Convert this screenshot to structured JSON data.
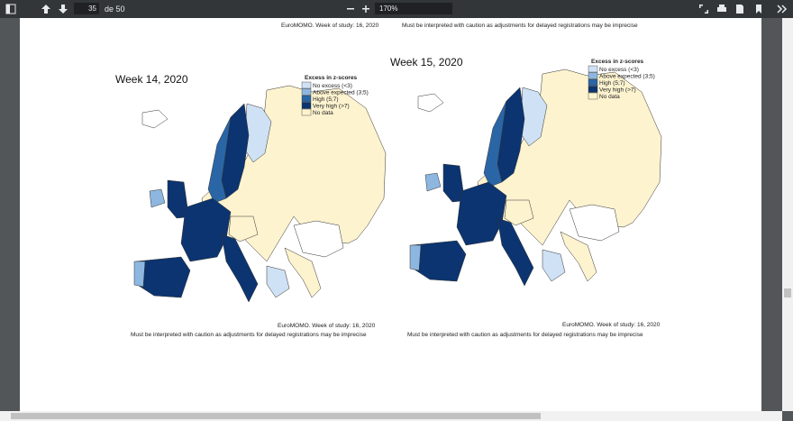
{
  "toolbar": {
    "page_number": "35",
    "page_total": "de 50",
    "zoom": "170%"
  },
  "page": {
    "top_footer": {
      "source": "EuroMOMO. Week of study: 16, 2020",
      "caution": "Must be interpreted with caution as adjustments for delayed registrations may be imprecise"
    },
    "panels": [
      {
        "title": "Week 14, 2020",
        "legend": {
          "title": "Excess in z-scores",
          "items": [
            {
              "label": "No excess (<3)",
              "color": "#cfe1f4"
            },
            {
              "label": "Above expected (3;5)",
              "color": "#8db7e0"
            },
            {
              "label": "High (5;7)",
              "color": "#2a66a6"
            },
            {
              "label": "Very high (>7)",
              "color": "#0b3470"
            },
            {
              "label": "No data",
              "color": "#fdf3cf"
            }
          ]
        },
        "source": "EuroMOMO. Week of study: 16, 2020",
        "caution": "Must be interpreted with caution as adjustments for delayed registrations may be imprecise"
      },
      {
        "title": "Week 15, 2020",
        "legend": {
          "title": "Excess in z-scores",
          "items": [
            {
              "label": "No excess (<3)",
              "color": "#cfe1f4"
            },
            {
              "label": "Above expected (3;5)",
              "color": "#8db7e0"
            },
            {
              "label": "High (5;7)",
              "color": "#2a66a6"
            },
            {
              "label": "Very high (>7)",
              "color": "#0b3470"
            },
            {
              "label": "No data",
              "color": "#fdf3cf"
            }
          ]
        },
        "source": "EuroMOMO. Week of study: 16, 2020",
        "caution": "Must be interpreted with caution as adjustments for delayed registrations may be imprecise"
      }
    ]
  }
}
